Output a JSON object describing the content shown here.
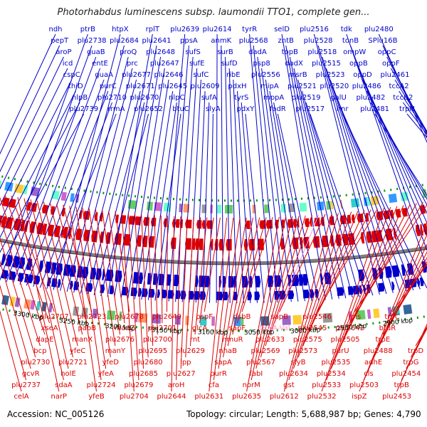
{
  "title": "Photorhabdus luminescens subsp. laumondii TTO1, complete gen...",
  "footer": {
    "accession": "Accession: NC_005126",
    "topology": "Topology: circular; Length: 5,688,987 bp; Genes: 4,790"
  },
  "colors": {
    "forward": "#0000cc",
    "reverse": "#dd0000",
    "rna": "#ff99cc",
    "backbone": "#808080",
    "tick_dots": "#009900"
  },
  "ticks": [
    "3350 kbp",
    "3300 kbp",
    "3250 kbp",
    "3200 kbp",
    "3150 kbp",
    "3100 kbp",
    "3050 kbp",
    "3000 kbp",
    "2950 kbp",
    "2900 kbp"
  ],
  "forward_labels": [
    "ndh",
    "pepT",
    "aroP",
    "icd",
    "cspC",
    "thiD",
    "nlpB",
    "plu2739",
    "ptrB",
    "plu2738",
    "guaB",
    "entE",
    "guaA",
    "purC",
    "plu2710",
    "rrmA",
    "htpX",
    "plu2684",
    "proQ",
    "prc",
    "plu2677",
    "plu2671",
    "plu2670",
    "plu2652",
    "rplT",
    "plu2641",
    "plu2648",
    "plu2647",
    "plu2646",
    "plu2645",
    "nlpC",
    "btuC",
    "plu2639",
    "ppsA",
    "sufS",
    "sufE",
    "sufC",
    "plu2609",
    "sufA",
    "slyA",
    "plu2614",
    "anmK",
    "surB",
    "sufD",
    "ribE",
    "pdxH",
    "tyrS",
    "pdxY",
    "tyrR",
    "plu2568",
    "dadA",
    "psp8",
    "plu2556",
    "mipA",
    "mppA",
    "fadR",
    "selD",
    "zntB",
    "topB",
    "dadX",
    "msrB",
    "plu2521",
    "plu2519",
    "plu2517",
    "plu2516",
    "plu2528",
    "plu2518",
    "plu2515",
    "plu2523",
    "plu2520",
    "galU",
    "hnr",
    "tdk",
    "tonB",
    "ompW",
    "oppB",
    "oppD",
    "plu2486",
    "plu2482",
    "plu2481",
    "plu2480",
    "SPlu16B",
    "oppC",
    "oppF",
    "plu2461",
    "tccA2",
    "tccB2",
    "trpH"
  ],
  "reverse_labels": [
    "celA",
    "plu2737",
    "gcvR",
    "plu2730",
    "bcp",
    "dapE",
    "xseA",
    "plu2707",
    "narP",
    "sdaA",
    "holE",
    "plu2721",
    "yfeC",
    "manX",
    "pabB",
    "plu2723",
    "yfeB",
    "plu2724",
    "yfeA",
    "yfeD",
    "manY",
    "plu2676",
    "manZ",
    "plu2678",
    "plu2704",
    "plu2679",
    "plu2685",
    "plu2680",
    "plu2695",
    "plu2700",
    "plu2701",
    "plu2649",
    "plu2644",
    "aroH",
    "plu2627",
    "lpp",
    "plu2629",
    "rnt",
    "glcA",
    "pspF",
    "plu2631",
    "cfa",
    "purR",
    "sapA",
    "nhaB",
    "hmuR",
    "sapF",
    "dsbB",
    "plu2635",
    "norM",
    "fabI",
    "plu2567",
    "plu2569",
    "plu2633",
    "tRNA-Val",
    "sapB",
    "plu2612",
    "gst",
    "plu2634",
    "slyB",
    "plu2573",
    "plu2575",
    "plu2545",
    "plu2546",
    "plu2532",
    "plu2533",
    "plu2534",
    "plu2535",
    "purU",
    "plu2505",
    "plu2642",
    "hns",
    "ispZ",
    "plu2503",
    "cls",
    "adhE",
    "plu2488",
    "trpE",
    "btuR",
    "trpC",
    "plu2453",
    "trpB",
    "plu2454",
    "trpG",
    "trpD"
  ]
}
